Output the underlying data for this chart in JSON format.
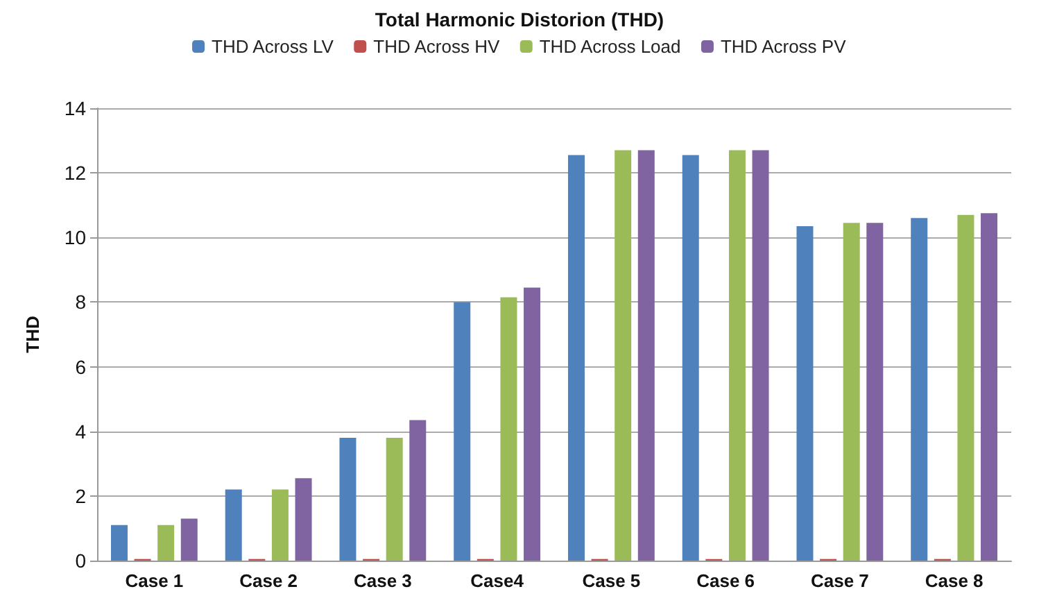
{
  "chart_data": {
    "type": "bar",
    "title": "Total Harmonic Distorion (THD)",
    "ylabel": "THD",
    "categories": [
      "Case 1",
      "Case 2",
      "Case 3",
      "Case4",
      "Case 5",
      "Case 6",
      "Case 7",
      "Case 8"
    ],
    "series": [
      {
        "name": "THD Across LV",
        "color": "#4f81bd",
        "values": [
          1.1,
          2.2,
          3.8,
          8.0,
          12.55,
          12.55,
          10.35,
          10.6
        ]
      },
      {
        "name": "THD Across HV",
        "color": "#c0504d",
        "values": [
          0.05,
          0.05,
          0.05,
          0.05,
          0.05,
          0.05,
          0.05,
          0.05
        ]
      },
      {
        "name": "THD Across Load",
        "color": "#9bbb59",
        "values": [
          1.1,
          2.2,
          3.8,
          8.15,
          12.7,
          12.7,
          10.45,
          10.7
        ]
      },
      {
        "name": "THD Across PV",
        "color": "#8064a2",
        "values": [
          1.3,
          2.55,
          4.35,
          8.45,
          12.7,
          12.7,
          10.45,
          10.75
        ]
      }
    ],
    "ylim": [
      0,
      14
    ],
    "yticks": [
      0,
      2,
      4,
      6,
      8,
      10,
      12,
      14
    ],
    "grid": "y",
    "legend": "top"
  }
}
